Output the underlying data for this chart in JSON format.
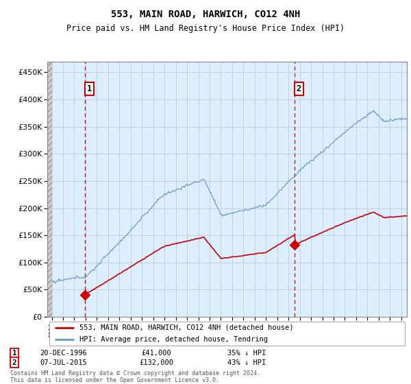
{
  "title": "553, MAIN ROAD, HARWICH, CO12 4NH",
  "subtitle": "Price paid vs. HM Land Registry's House Price Index (HPI)",
  "legend_line1": "553, MAIN ROAD, HARWICH, CO12 4NH (detached house)",
  "legend_line2": "HPI: Average price, detached house, Tendring",
  "footnote1": "Contains HM Land Registry data © Crown copyright and database right 2024.",
  "footnote2": "This data is licensed under the Open Government Licence v3.0.",
  "sale1_date": "20-DEC-1996",
  "sale1_price": 41000,
  "sale1_label": "£41,000",
  "sale1_hpi": "35% ↓ HPI",
  "sale2_date": "07-JUL-2015",
  "sale2_price": 132000,
  "sale2_label": "£132,000",
  "sale2_hpi": "43% ↓ HPI",
  "hpi_color": "#6699cc",
  "price_color": "#cc0000",
  "vline_color": "#cc0000",
  "marker_color": "#cc0000",
  "chart_bg": "#ddeeff",
  "grid_color": "#bbccdd",
  "hatch_color": "#bbbbbb",
  "ylim": [
    0,
    470000
  ],
  "yticks": [
    0,
    50000,
    100000,
    150000,
    200000,
    250000,
    300000,
    350000,
    400000,
    450000
  ],
  "year_start": 1994,
  "year_end": 2025,
  "sale1_t": 1996.958,
  "sale2_t": 2015.542
}
